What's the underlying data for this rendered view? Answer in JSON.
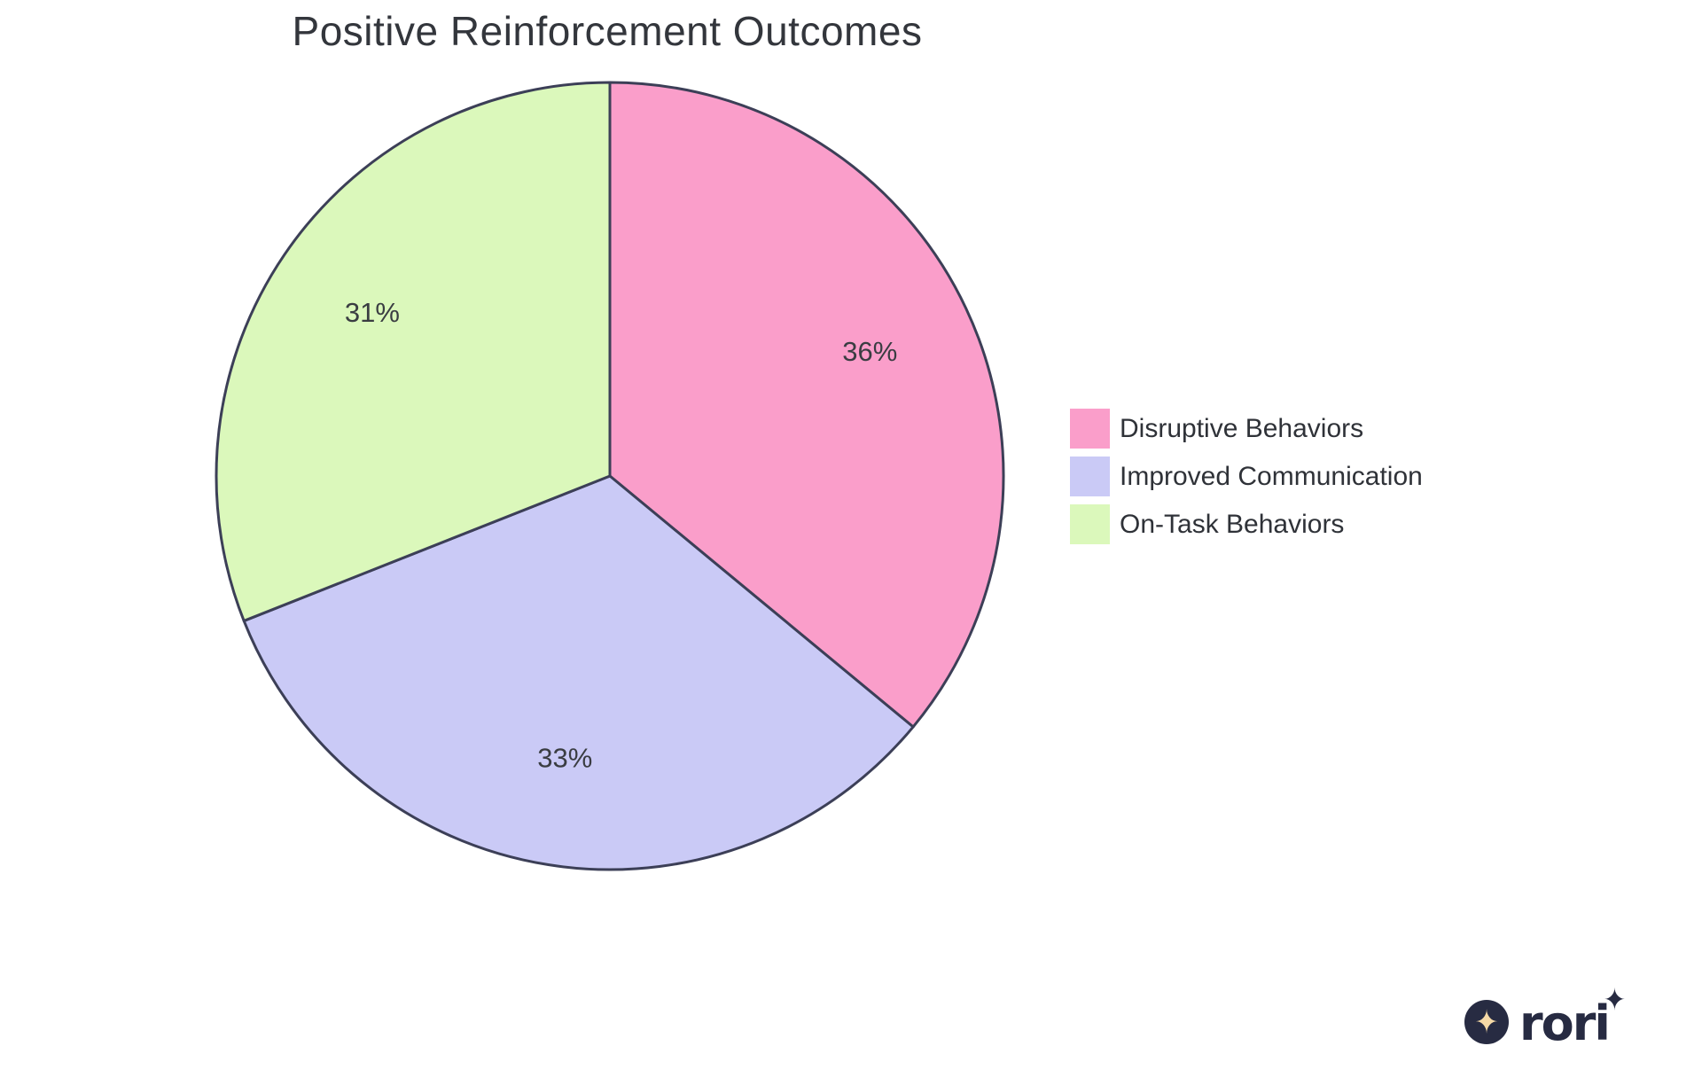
{
  "chart_data": {
    "type": "pie",
    "title": "Positive Reinforcement Outcomes",
    "start_angle_deg": -90,
    "direction": "clockwise",
    "stroke_color": "#3C3F57",
    "label_color": "#3A3D42",
    "legend_position": "right",
    "slices": [
      {
        "label": "Disruptive Behaviors",
        "value": 36,
        "display": "36%",
        "color": "#FA9ECA"
      },
      {
        "label": "Improved Communication",
        "value": 33,
        "display": "33%",
        "color": "#CACAF6"
      },
      {
        "label": "On-Task Behaviors",
        "value": 31,
        "display": "31%",
        "color": "#DBF8BB"
      }
    ]
  },
  "logo": {
    "text": "rori",
    "badge_star": "✦",
    "sparkle": "✦",
    "colors": {
      "badge": "#272B42",
      "star": "#F5D9A6",
      "text": "#272B42"
    }
  }
}
